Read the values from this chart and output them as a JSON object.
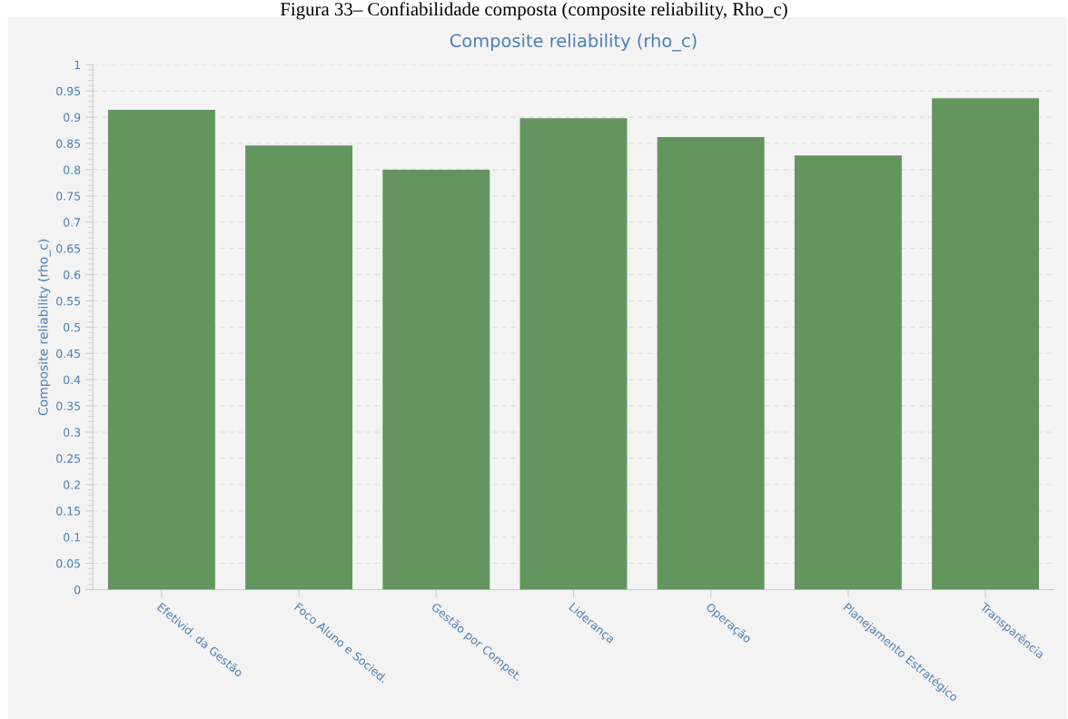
{
  "chart_data": {
    "type": "bar",
    "title": "Composite reliability (rho_c)",
    "ylabel": "Composite reliability (rho_c)",
    "annotations": [
      "Figura 33– Confiabilidade composta (composite reliability, Rho_c)"
    ],
    "categories": [
      "Efetivid. da Gestão",
      "Foco Aluno e Socied.",
      "Gestão por Compet.",
      "Liderança",
      "Operação",
      "Planejamento Estratégico",
      "Transparência"
    ],
    "values": [
      0.914,
      0.846,
      0.8,
      0.898,
      0.862,
      0.827,
      0.936
    ],
    "color": "#64955f",
    "ylim": [
      0,
      1
    ],
    "yticks": [
      0,
      0.05,
      0.1,
      0.15,
      0.2,
      0.25,
      0.3,
      0.35,
      0.4,
      0.45,
      0.5,
      0.55,
      0.6,
      0.65,
      0.7,
      0.75,
      0.8,
      0.85,
      0.9,
      0.95,
      1
    ],
    "grid": "y",
    "legend": false
  }
}
